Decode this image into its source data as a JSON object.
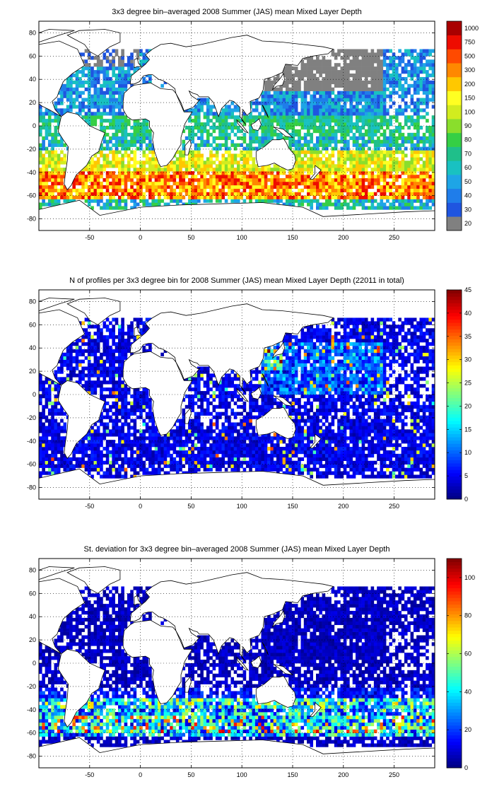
{
  "figure": {
    "panels": [
      {
        "id": "mld",
        "title": "3x3 degree bin–averaged 2008 Summer (JAS) mean Mixed Layer Depth",
        "colorbar": {
          "type": "categorical",
          "labels": [
            "20",
            "30",
            "40",
            "50",
            "60",
            "70",
            "80",
            "90",
            "100",
            "150",
            "200",
            "300",
            "500",
            "750",
            "1000"
          ],
          "colors": [
            "#808080",
            "#1f55e0",
            "#1f7dea",
            "#1ea5e6",
            "#19c1c1",
            "#1fbf8a",
            "#35cf45",
            "#8ade2c",
            "#d2ec1f",
            "#ffff22",
            "#ffc800",
            "#ff8800",
            "#ff4a00",
            "#ee0c00",
            "#a90000"
          ]
        }
      },
      {
        "id": "nprof",
        "title": "N of profiles per 3x3 degree bin for 2008 Summer (JAS) mean Mixed Layer Depth  (22011 in total)",
        "colorbar": {
          "type": "continuous",
          "range": [
            0,
            45
          ],
          "ticks": [
            "0",
            "5",
            "10",
            "15",
            "20",
            "25",
            "30",
            "35",
            "40",
            "45"
          ]
        }
      },
      {
        "id": "std",
        "title": "St. deviation for 3x3 degree bin–averaged 2008 Summer (JAS) mean Mixed Layer Depth",
        "colorbar": {
          "type": "continuous",
          "range": [
            0,
            110
          ],
          "ticks": [
            "0",
            "20",
            "40",
            "60",
            "80",
            "100"
          ]
        }
      }
    ],
    "x_axis": {
      "range": [
        -100,
        290
      ],
      "tick_labels": [
        "-50",
        "0",
        "50",
        "100",
        "150",
        "200",
        "250"
      ]
    },
    "y_axis": {
      "range": [
        -90,
        90
      ],
      "tick_labels": [
        "80",
        "60",
        "40",
        "20",
        "0",
        "-20",
        "-40",
        "-60",
        "-80"
      ]
    },
    "grid": "dotted",
    "colormap": "jet"
  }
}
